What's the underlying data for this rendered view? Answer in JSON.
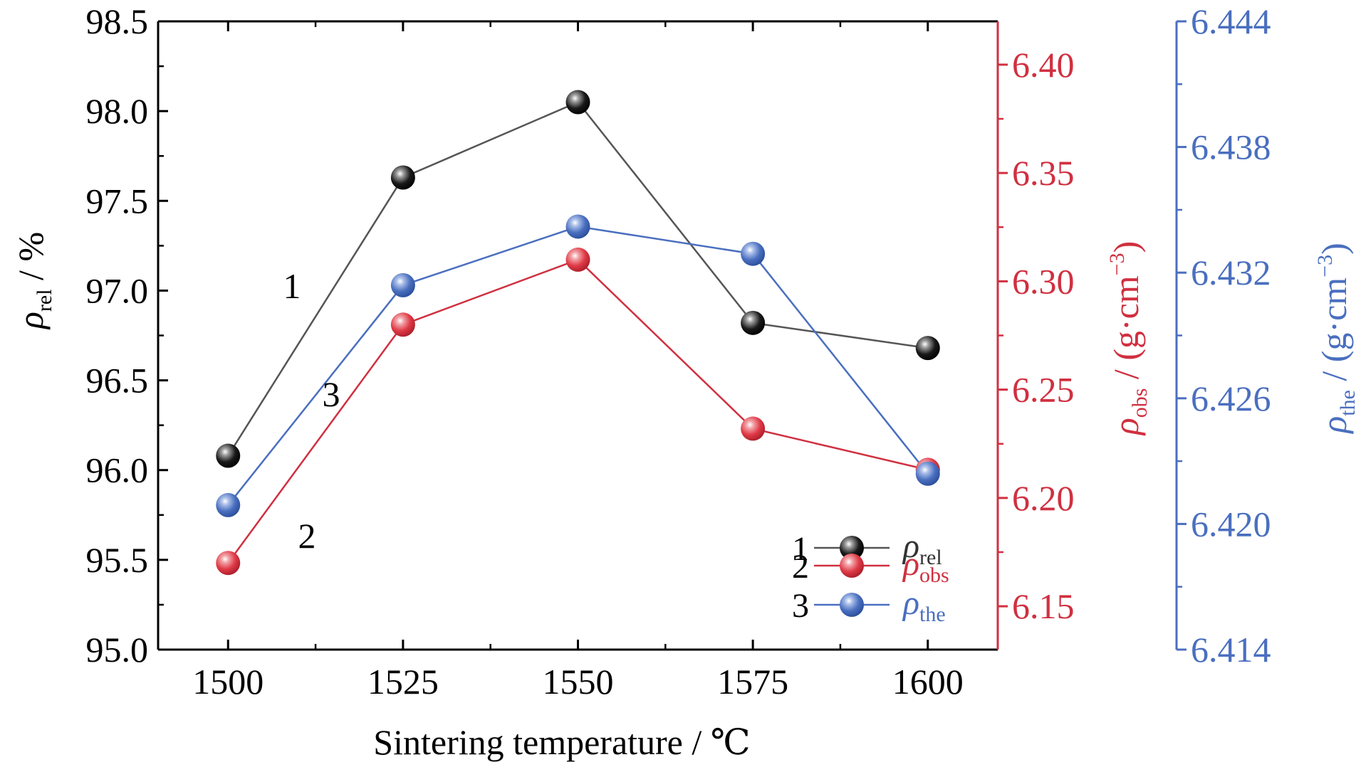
{
  "colors": {
    "black": "#1a1a1a",
    "line_black": "#555555",
    "red": "#d03040",
    "blue": "#4a6fbf"
  },
  "chart_data": {
    "type": "line",
    "x": [
      1500,
      1525,
      1550,
      1575,
      1600
    ],
    "x_ticks": [
      "1500",
      "1525",
      "1550",
      "1575",
      "1600"
    ],
    "xlabel": "Sintering temperature / ℃",
    "xlim": [
      1490,
      1610
    ],
    "axes": {
      "left": {
        "label_symbol": "ρ",
        "label_sub": "rel",
        "label_rest": " / %",
        "lim": [
          95.0,
          98.5
        ],
        "ticks": [
          "95.0",
          "95.5",
          "96.0",
          "96.5",
          "97.0",
          "97.5",
          "98.0",
          "98.5"
        ]
      },
      "right_red": {
        "label_symbol": "ρ",
        "label_sub": "obs",
        "label_rest": " / (g·cm",
        "label_sup": "−3",
        "label_end": ")",
        "lim": [
          6.13,
          6.42
        ],
        "ticks": [
          "6.15",
          "6.20",
          "6.25",
          "6.30",
          "6.35",
          "6.40"
        ]
      },
      "right_blue": {
        "label_symbol": "ρ",
        "label_sub": "the",
        "label_rest": " / (g·cm",
        "label_sup": "−3",
        "label_end": ")",
        "lim": [
          6.414,
          6.444
        ],
        "ticks": [
          "6.414",
          "6.420",
          "6.426",
          "6.432",
          "6.438",
          "6.444"
        ]
      }
    },
    "series": [
      {
        "id": "1",
        "name": "ρrel",
        "legend_symbol": "ρ",
        "legend_sub": "rel",
        "axis": "left",
        "values": [
          96.08,
          97.63,
          98.05,
          96.82,
          96.68
        ]
      },
      {
        "id": "2",
        "name": "ρobs",
        "legend_symbol": "ρ",
        "legend_sub": "obs",
        "axis": "right_red",
        "values": [
          6.17,
          6.28,
          6.31,
          6.232,
          6.213
        ]
      },
      {
        "id": "3",
        "name": "ρthe",
        "legend_symbol": "ρ",
        "legend_sub": "the",
        "axis": "right_blue",
        "values": [
          6.4209,
          6.4314,
          6.4342,
          6.4329,
          6.4224
        ]
      }
    ],
    "curve_labels": [
      "1",
      "2",
      "3"
    ],
    "legend_position": "bottom-right"
  }
}
